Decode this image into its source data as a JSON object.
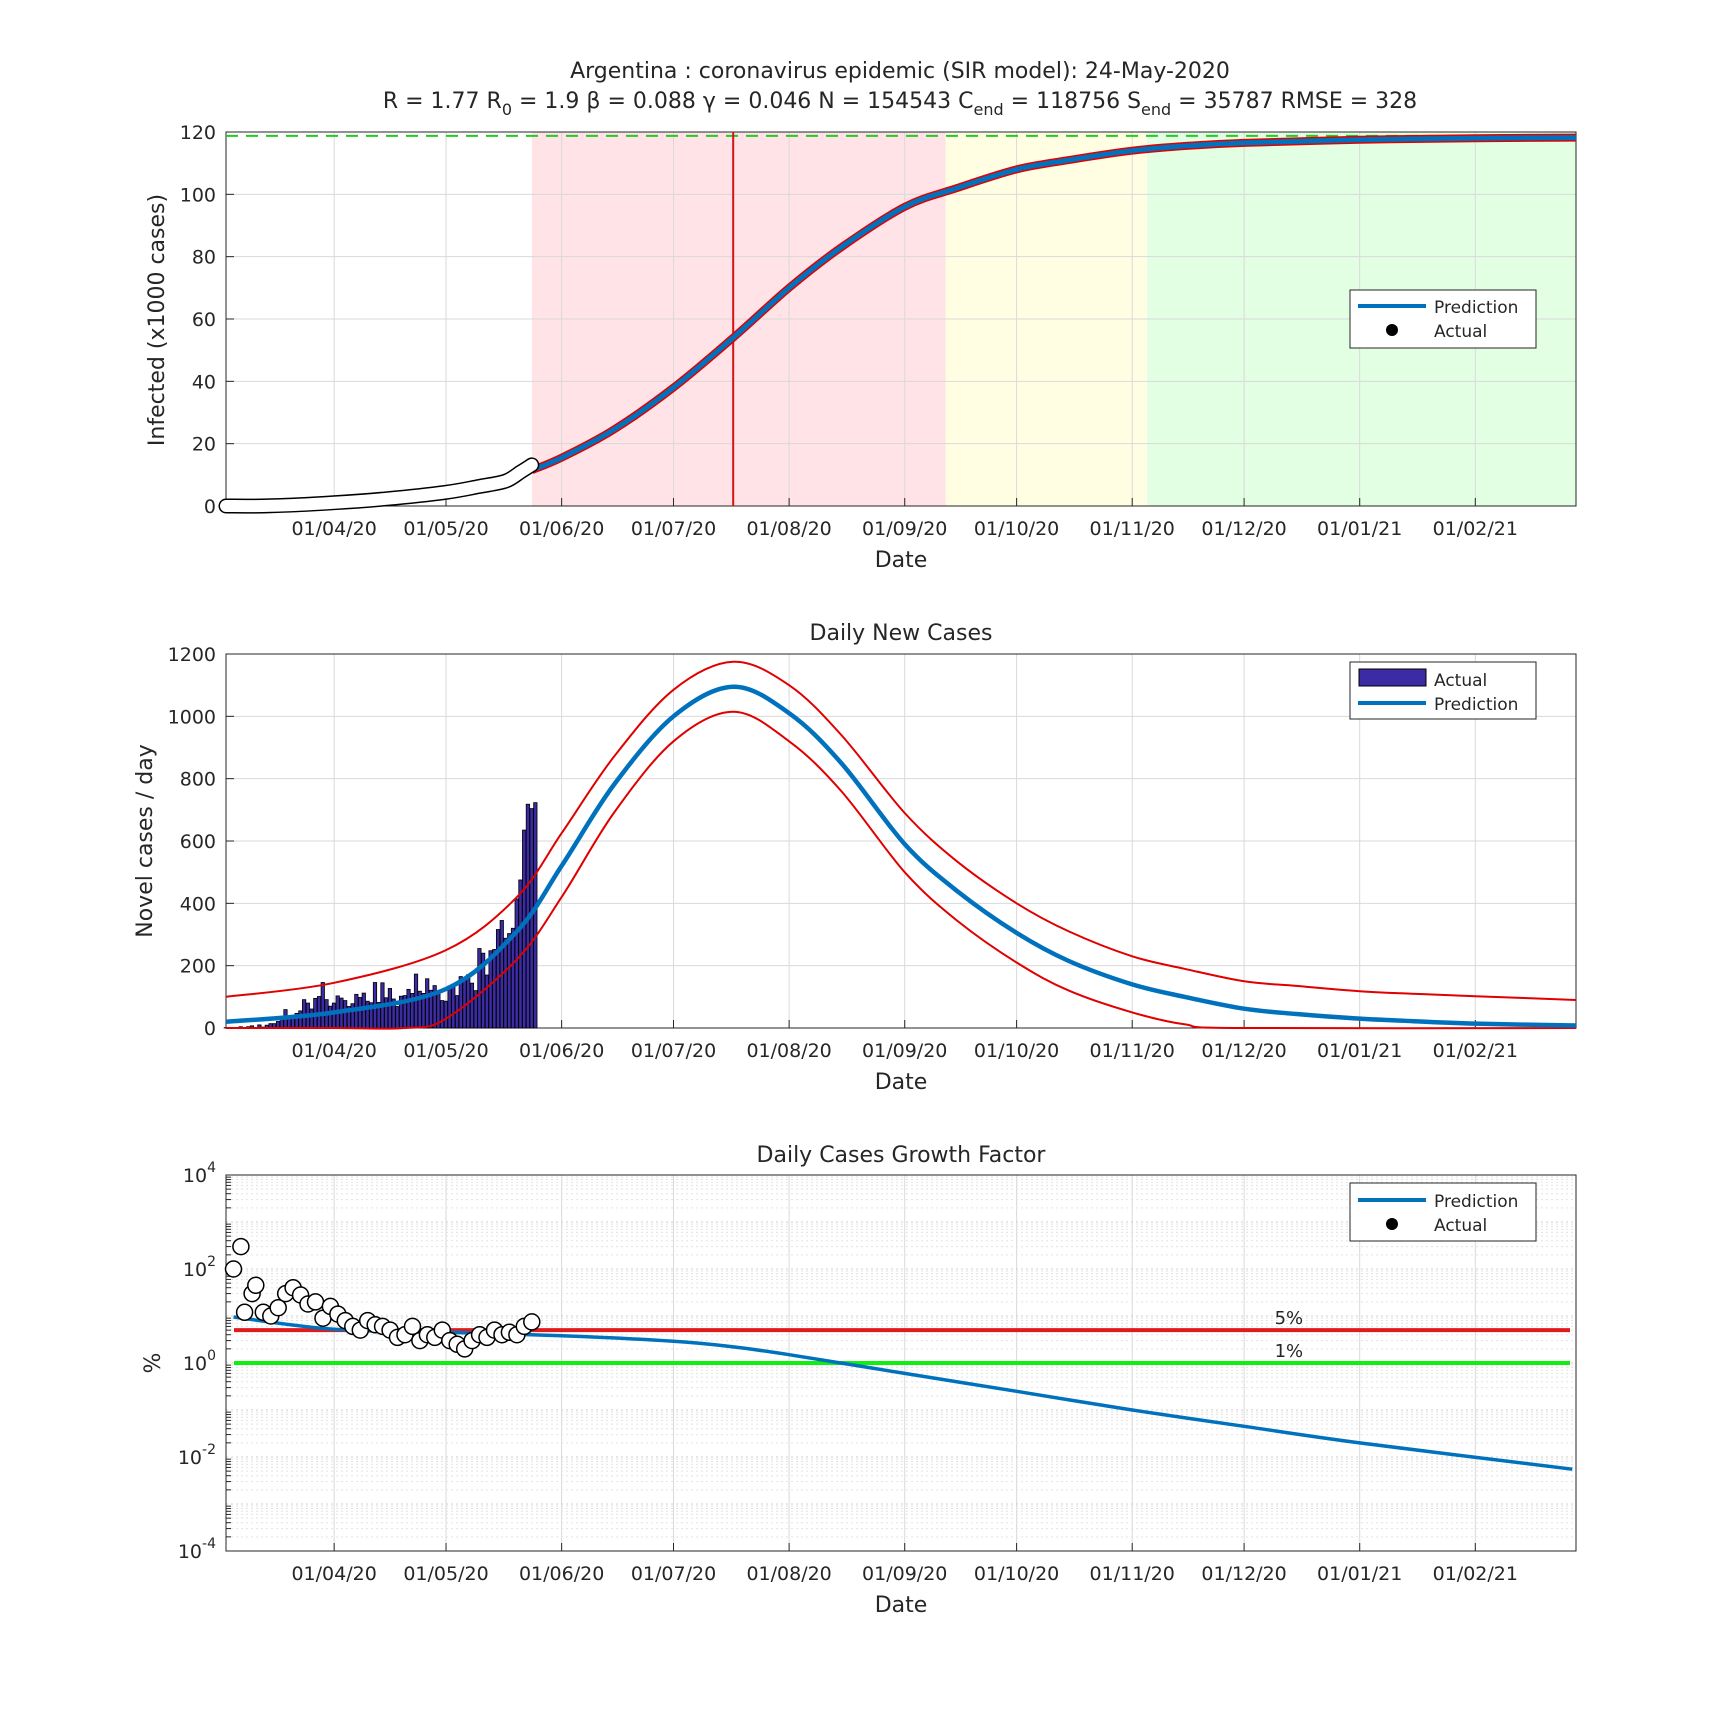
{
  "figure": {
    "title_line1": "Argentina : coronavirus epidemic (SIR model): 24-May-2020",
    "params": [
      {
        "label": "R",
        "sub": "",
        "value": "1.77"
      },
      {
        "label": "R",
        "sub": "0",
        "value": "1.9"
      },
      {
        "label": "β",
        "sub": "",
        "value": "0.088"
      },
      {
        "label": "γ",
        "sub": "",
        "value": "0.046"
      },
      {
        "label": "N",
        "sub": "",
        "value": "154543"
      },
      {
        "label": "C",
        "sub": "end",
        "value": "118756"
      },
      {
        "label": "S",
        "sub": "end",
        "value": "35787"
      },
      {
        "label": "RMSE",
        "sub": "",
        "value": "328"
      }
    ]
  },
  "colors": {
    "prediction": "#0072BD",
    "band": "#E00000",
    "actual_bar": "#3B2BA5",
    "phase_red": "#FFE3E6",
    "phase_yellow": "#FFFEE3",
    "phase_green": "#E3FFE3",
    "asymptote": "#22CC22",
    "line_5pct": "#E01B1B",
    "line_1pct": "#11EE11"
  },
  "chart_data": [
    {
      "id": "cumulative",
      "type": "line",
      "title": "",
      "xlabel": "Date",
      "ylabel": "Infected (x1000 cases)",
      "xlim": [
        "2020-03-03",
        "2021-02-28"
      ],
      "ylim": [
        0,
        120
      ],
      "yticks": [
        0,
        20,
        40,
        60,
        80,
        100,
        120
      ],
      "xticks": [
        "2020-04-01",
        "2020-05-01",
        "2020-06-01",
        "2020-07-01",
        "2020-08-01",
        "2020-09-01",
        "2020-10-01",
        "2020-11-01",
        "2020-12-01",
        "2021-01-01",
        "2021-02-01"
      ],
      "xticklabels": [
        "01/04/20",
        "01/05/20",
        "01/06/20",
        "01/07/20",
        "01/08/20",
        "01/09/20",
        "01/10/20",
        "01/11/20",
        "01/12/20",
        "01/01/21",
        "01/02/21"
      ],
      "grid": true,
      "legend": {
        "position": "right",
        "entries": [
          "Prediction",
          "Actual"
        ]
      },
      "asymptote": 118.756,
      "peak_date": "2020-07-17",
      "phases": [
        {
          "from": "2020-05-24",
          "to": "2020-09-12",
          "color": "phase_red"
        },
        {
          "from": "2020-09-12",
          "to": "2020-11-05",
          "color": "phase_yellow"
        },
        {
          "from": "2020-11-05",
          "to": "2021-02-28",
          "color": "phase_green"
        }
      ],
      "prediction": {
        "name": "Prediction",
        "x": [
          "2020-05-24",
          "2020-06-01",
          "2020-06-15",
          "2020-07-01",
          "2020-07-17",
          "2020-08-01",
          "2020-08-15",
          "2020-09-01",
          "2020-09-15",
          "2020-10-01",
          "2020-10-15",
          "2020-11-01",
          "2020-11-15",
          "2020-12-01",
          "2021-01-01",
          "2021-02-01",
          "2021-02-28"
        ],
        "y": [
          11.5,
          15.5,
          24.5,
          38,
          54,
          70,
          83,
          96,
          102,
          108,
          111,
          114,
          115.5,
          116.5,
          117.5,
          118,
          118.2
        ]
      },
      "actual": {
        "name": "Actual",
        "x": [
          "2020-03-03",
          "2020-03-15",
          "2020-04-01",
          "2020-04-15",
          "2020-05-01",
          "2020-05-10",
          "2020-05-17",
          "2020-05-21",
          "2020-05-24"
        ],
        "y": [
          0.001,
          0.05,
          1.05,
          2.3,
          4.4,
          6.3,
          8.0,
          10.9,
          13.2
        ]
      }
    },
    {
      "id": "daily",
      "type": "bar",
      "title": "Daily New Cases",
      "xlabel": "Date",
      "ylabel": "Novel cases / day",
      "xlim": [
        "2020-03-03",
        "2021-02-28"
      ],
      "ylim": [
        0,
        1200
      ],
      "yticks": [
        0,
        200,
        400,
        600,
        800,
        1000,
        1200
      ],
      "grid": true,
      "legend": {
        "position": "top-right",
        "entries": [
          "Actual",
          "Prediction"
        ]
      },
      "actual": {
        "name": "Actual",
        "start": "2020-03-03",
        "values": [
          1,
          0,
          0,
          0,
          4,
          2,
          4,
          7,
          2,
          10,
          3,
          9,
          14,
          14,
          21,
          31,
          59,
          35,
          37,
          47,
          55,
          91,
          80,
          61,
          95,
          101,
          146,
          91,
          70,
          80,
          103,
          96,
          88,
          69,
          78,
          108,
          98,
          112,
          86,
          81,
          146,
          82,
          145,
          97,
          127,
          93,
          69,
          102,
          104,
          124,
          111,
          173,
          118,
          111,
          158,
          121,
          136,
          114,
          88,
          86,
          135,
          130,
          104,
          165,
          157,
          171,
          144,
          120,
          255,
          240,
          170,
          248,
          252,
          316,
          345,
          288,
          303,
          320,
          414,
          475,
          635,
          718,
          704,
          723
        ]
      },
      "prediction": {
        "name": "Prediction",
        "x": [
          "2020-03-03",
          "2020-04-01",
          "2020-05-01",
          "2020-05-20",
          "2020-06-01",
          "2020-06-15",
          "2020-07-01",
          "2020-07-17",
          "2020-08-01",
          "2020-08-15",
          "2020-09-01",
          "2020-09-15",
          "2020-10-01",
          "2020-10-15",
          "2020-11-01",
          "2020-11-15",
          "2020-12-01",
          "2020-12-15",
          "2021-01-01",
          "2021-01-15",
          "2021-02-01",
          "2021-02-28"
        ],
        "y": [
          20,
          50,
          125,
          310,
          520,
          780,
          1000,
          1095,
          1010,
          850,
          590,
          440,
          305,
          215,
          140,
          100,
          62,
          45,
          30,
          22,
          14,
          8
        ]
      },
      "upper": {
        "x": [
          "2020-03-03",
          "2020-04-01",
          "2020-05-01",
          "2020-05-20",
          "2020-06-01",
          "2020-06-15",
          "2020-07-01",
          "2020-07-17",
          "2020-08-01",
          "2020-08-15",
          "2020-09-01",
          "2020-09-15",
          "2020-10-01",
          "2020-10-15",
          "2020-11-01",
          "2020-11-15",
          "2020-12-01",
          "2020-12-15",
          "2021-01-01",
          "2021-01-15",
          "2021-02-01",
          "2021-02-28"
        ],
        "y": [
          100,
          145,
          250,
          420,
          625,
          870,
          1085,
          1175,
          1100,
          940,
          690,
          535,
          400,
          310,
          230,
          190,
          150,
          135,
          118,
          110,
          102,
          90
        ]
      },
      "lower": {
        "x": [
          "2020-03-03",
          "2020-04-01",
          "2020-04-20",
          "2020-05-01",
          "2020-05-20",
          "2020-06-01",
          "2020-06-15",
          "2020-07-01",
          "2020-07-17",
          "2020-08-01",
          "2020-08-15",
          "2020-09-01",
          "2020-09-15",
          "2020-10-01",
          "2020-10-15",
          "2020-11-01",
          "2020-11-15",
          "2020-11-30",
          "2021-02-28"
        ],
        "y": [
          0,
          0,
          0,
          30,
          220,
          420,
          690,
          920,
          1015,
          920,
          760,
          500,
          345,
          210,
          120,
          50,
          12,
          0,
          0
        ]
      }
    },
    {
      "id": "growth",
      "type": "line",
      "title": "Daily Cases Growth Factor",
      "xlabel": "Date",
      "ylabel": "%",
      "xlim": [
        "2020-03-03",
        "2021-02-28"
      ],
      "yscale": "log",
      "ylim": [
        0.0001,
        10000
      ],
      "ytick_exponents": [
        -4,
        -2,
        0,
        2,
        4
      ],
      "grid": true,
      "legend": {
        "position": "top-right",
        "entries": [
          "Prediction",
          "Actual"
        ]
      },
      "hlines": [
        {
          "y": 5,
          "label": "5%",
          "color": "line_5pct"
        },
        {
          "y": 1,
          "label": "1%",
          "color": "line_1pct"
        }
      ],
      "prediction": {
        "name": "Prediction",
        "x": [
          "2020-03-05",
          "2020-04-01",
          "2020-05-01",
          "2020-06-01",
          "2020-07-01",
          "2020-07-17",
          "2020-08-01",
          "2020-09-01",
          "2020-10-01",
          "2020-11-01",
          "2020-12-01",
          "2021-01-01",
          "2021-02-27"
        ],
        "y": [
          9.5,
          5.2,
          4.5,
          3.8,
          2.9,
          2.2,
          1.5,
          0.6,
          0.25,
          0.1,
          0.045,
          0.02,
          0.0055
        ]
      },
      "actual": {
        "name": "Actual",
        "x": [
          "2020-03-05",
          "2020-03-07",
          "2020-03-08",
          "2020-03-10",
          "2020-03-11",
          "2020-03-13",
          "2020-03-15",
          "2020-03-17",
          "2020-03-19",
          "2020-03-21",
          "2020-03-23",
          "2020-03-25",
          "2020-03-27",
          "2020-03-29",
          "2020-03-31",
          "2020-04-02",
          "2020-04-04",
          "2020-04-06",
          "2020-04-08",
          "2020-04-10",
          "2020-04-12",
          "2020-04-14",
          "2020-04-16",
          "2020-04-18",
          "2020-04-20",
          "2020-04-22",
          "2020-04-24",
          "2020-04-26",
          "2020-04-28",
          "2020-04-30",
          "2020-05-02",
          "2020-05-04",
          "2020-05-06",
          "2020-05-08",
          "2020-05-10",
          "2020-05-12",
          "2020-05-14",
          "2020-05-16",
          "2020-05-18",
          "2020-05-20",
          "2020-05-22",
          "2020-05-24"
        ],
        "y": [
          100,
          300,
          12,
          30,
          45,
          12,
          10,
          15,
          30,
          40,
          28,
          18,
          20,
          9,
          16,
          11,
          8,
          6,
          5,
          8,
          6.5,
          6,
          5,
          3.5,
          4,
          6,
          3,
          4,
          3.5,
          5,
          3,
          2.5,
          2,
          3,
          4,
          3.5,
          5,
          4,
          4.5,
          4,
          6,
          7.5
        ]
      }
    }
  ]
}
